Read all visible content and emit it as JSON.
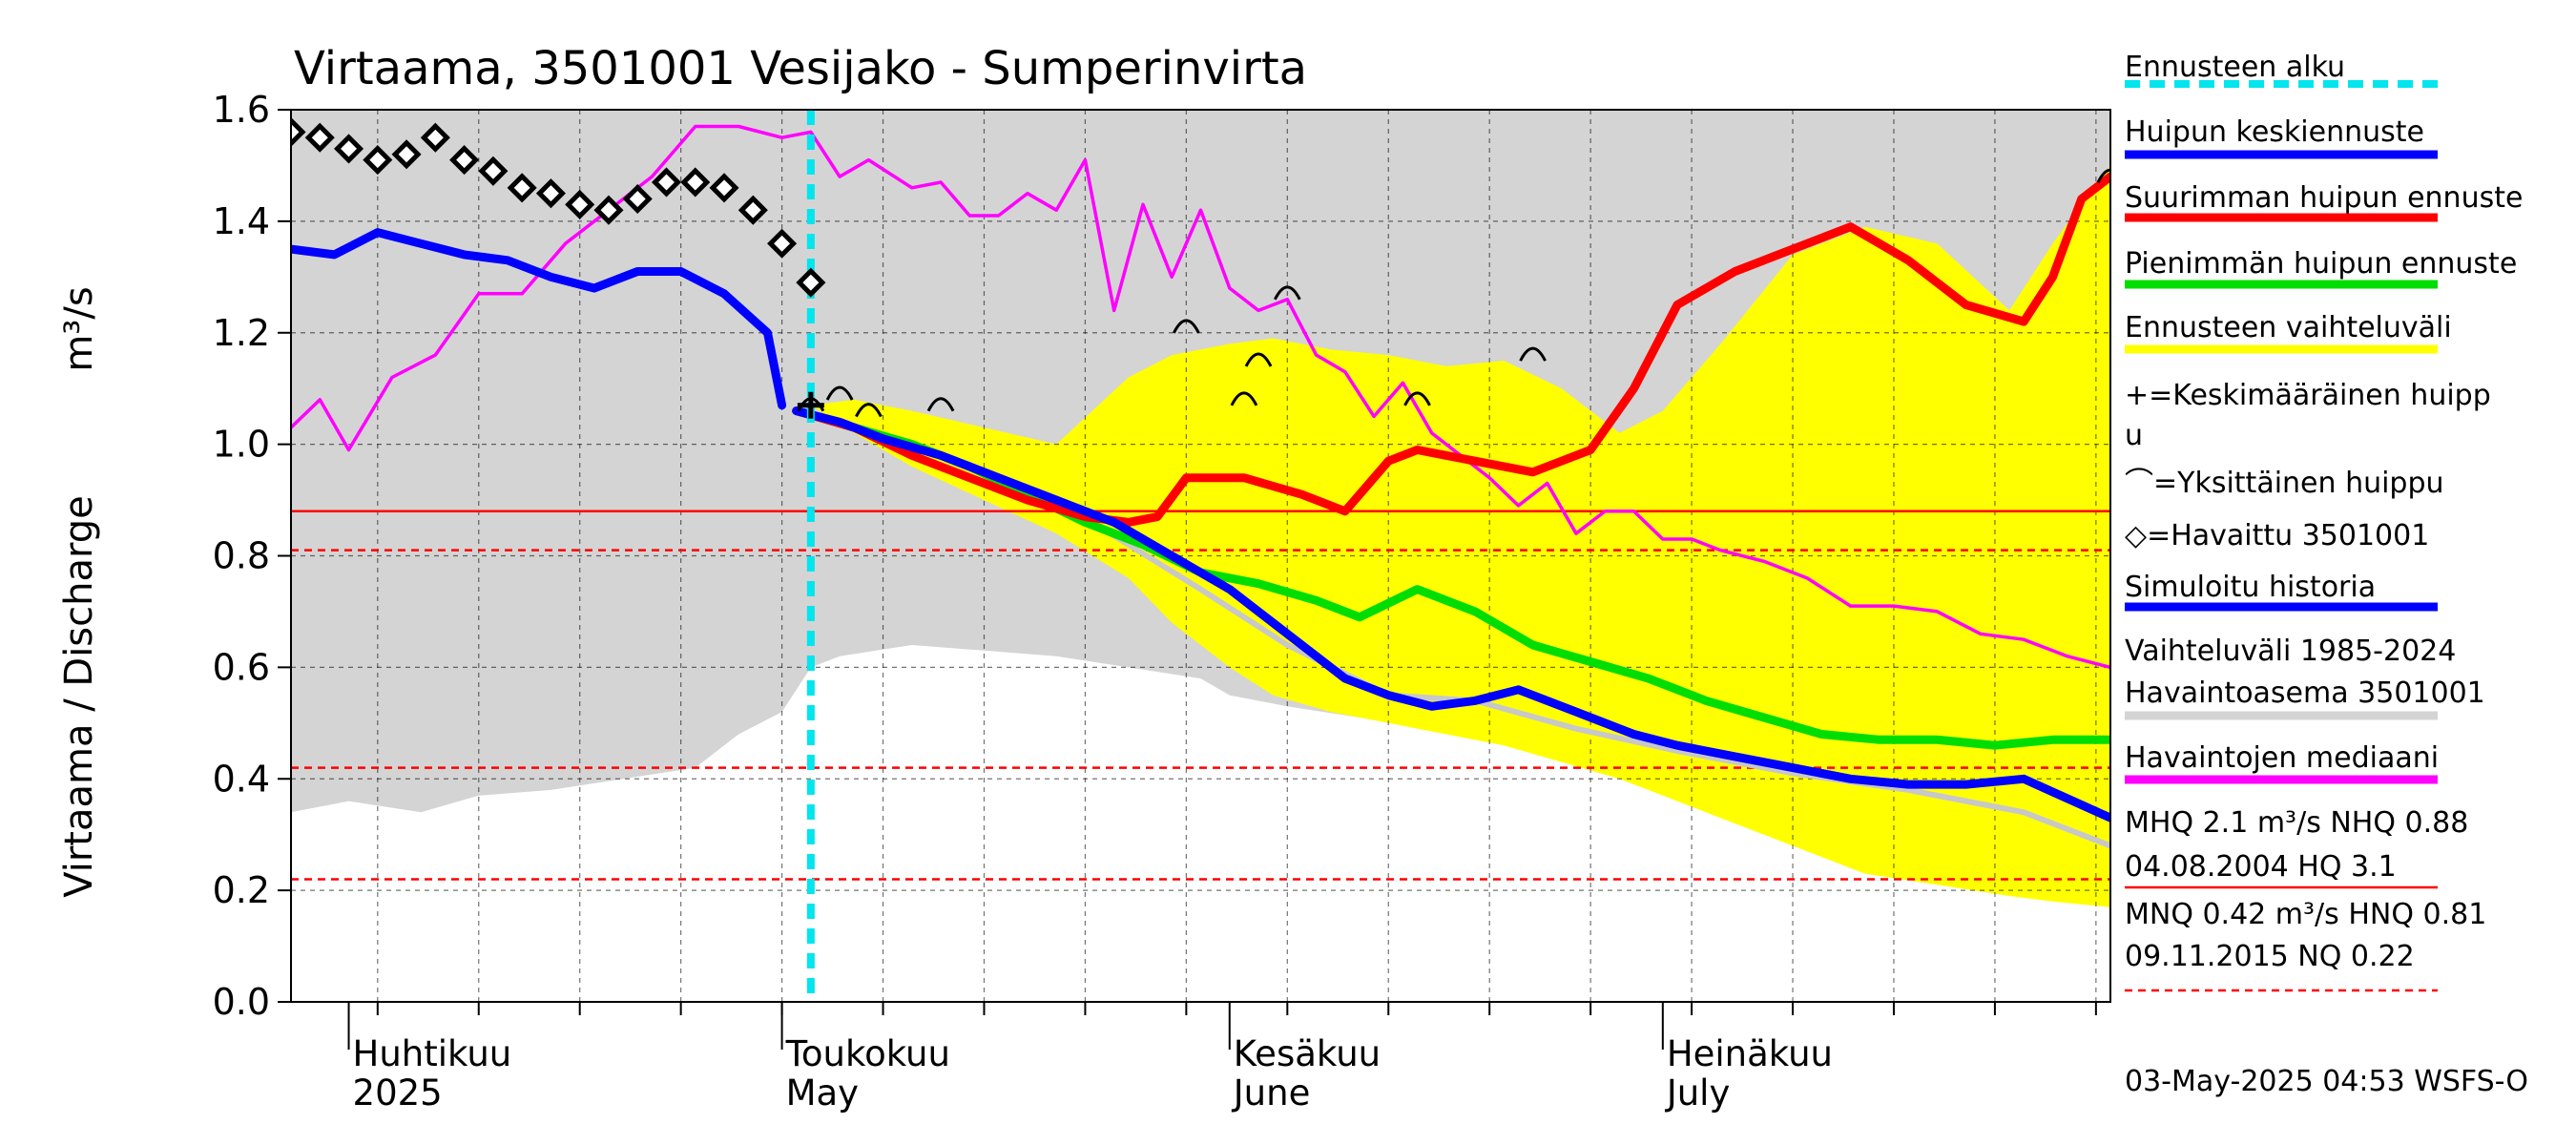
{
  "chart_data": {
    "type": "line",
    "title": "Virtaama, 3501001 Vesijako - Sumperinvirta",
    "ylabel": "Virtaama / Discharge",
    "yunit": "m³/s",
    "ylim": [
      0,
      1.6
    ],
    "xlim": [
      "2025-03-28",
      "2025-08-01"
    ],
    "yticks": [
      "0.0",
      "0.2",
      "0.4",
      "0.6",
      "0.8",
      "1.0",
      "1.2",
      "1.4",
      "1.6"
    ],
    "months": [
      {
        "label": "Huhtikuu",
        "sublabel": "2025",
        "date": "2025-04-01"
      },
      {
        "label": "Toukokuu",
        "sublabel": "May",
        "date": "2025-05-01"
      },
      {
        "label": "Kesäkuu",
        "sublabel": "June",
        "date": "2025-06-01"
      },
      {
        "label": "Heinäkuu",
        "sublabel": "July",
        "date": "2025-07-01"
      }
    ],
    "forecast_start": "2025-05-03",
    "hlines": [
      {
        "y": 0.88,
        "style": "solid",
        "color": "#ff0000"
      },
      {
        "y": 0.81,
        "style": "dashed",
        "color": "#ff0000"
      },
      {
        "y": 0.42,
        "style": "dashed",
        "color": "#ff0000"
      },
      {
        "y": 0.22,
        "style": "dashed",
        "color": "#ff0000"
      }
    ],
    "history_band": {
      "name": "Vaihteluväli 1985-2024 Havaintoasema 3501001",
      "color": "#d4d4d4",
      "x": [
        "2025-03-28",
        "2025-04-01",
        "2025-04-06",
        "2025-04-10",
        "2025-04-15",
        "2025-04-20",
        "2025-04-25",
        "2025-04-28",
        "2025-05-01",
        "2025-05-03",
        "2025-05-05",
        "2025-05-10",
        "2025-05-15",
        "2025-05-20",
        "2025-05-25",
        "2025-05-30",
        "2025-06-01",
        "2025-06-05",
        "2025-06-10",
        "2025-06-15",
        "2025-06-20",
        "2025-06-25",
        "2025-06-30",
        "2025-07-05",
        "2025-07-10",
        "2025-07-15",
        "2025-07-20",
        "2025-07-25",
        "2025-08-01"
      ],
      "upper": [
        1.6,
        1.6,
        1.6,
        1.6,
        1.6,
        1.6,
        1.6,
        1.6,
        1.6,
        1.6,
        1.6,
        1.6,
        1.6,
        1.6,
        1.6,
        1.6,
        1.6,
        1.6,
        1.6,
        1.6,
        1.6,
        1.6,
        1.6,
        1.6,
        1.6,
        1.6,
        1.6,
        1.6,
        1.6
      ],
      "lower": [
        0.34,
        0.36,
        0.34,
        0.37,
        0.38,
        0.4,
        0.42,
        0.48,
        0.52,
        0.6,
        0.62,
        0.64,
        0.63,
        0.62,
        0.6,
        0.58,
        0.55,
        0.53,
        0.51,
        0.5,
        0.5,
        0.49,
        0.48,
        0.46,
        0.44,
        0.42,
        0.41,
        0.38,
        0.3
      ]
    },
    "forecast_band": {
      "name": "Ennusteen vaihteluväli",
      "color": "#ffff00",
      "x": [
        "2025-05-03",
        "2025-05-06",
        "2025-05-10",
        "2025-05-15",
        "2025-05-20",
        "2025-05-25",
        "2025-05-28",
        "2025-06-01",
        "2025-06-04",
        "2025-06-08",
        "2025-06-12",
        "2025-06-16",
        "2025-06-20",
        "2025-06-24",
        "2025-06-28",
        "2025-07-01",
        "2025-07-05",
        "2025-07-10",
        "2025-07-15",
        "2025-07-20",
        "2025-07-25",
        "2025-07-28",
        "2025-08-01"
      ],
      "upper": [
        1.07,
        1.08,
        1.06,
        1.03,
        1.0,
        1.12,
        1.16,
        1.18,
        1.19,
        1.17,
        1.16,
        1.14,
        1.15,
        1.1,
        1.02,
        1.06,
        1.18,
        1.34,
        1.39,
        1.36,
        1.24,
        1.36,
        1.5
      ],
      "lower": [
        1.07,
        1.02,
        0.96,
        0.9,
        0.84,
        0.76,
        0.68,
        0.6,
        0.55,
        0.52,
        0.5,
        0.48,
        0.46,
        0.43,
        0.4,
        0.37,
        0.33,
        0.28,
        0.23,
        0.21,
        0.19,
        0.18,
        0.17
      ]
    },
    "series": [
      {
        "name": "Havaintojen mediaani",
        "color": "#ff00ff",
        "x": [
          "2025-03-28",
          "2025-03-30",
          "2025-04-01",
          "2025-04-04",
          "2025-04-07",
          "2025-04-10",
          "2025-04-13",
          "2025-04-16",
          "2025-04-19",
          "2025-04-22",
          "2025-04-25",
          "2025-04-28",
          "2025-05-01",
          "2025-05-03",
          "2025-05-05",
          "2025-05-07",
          "2025-05-10",
          "2025-05-12",
          "2025-05-14",
          "2025-05-16",
          "2025-05-18",
          "2025-05-20",
          "2025-05-22",
          "2025-05-24",
          "2025-05-26",
          "2025-05-28",
          "2025-05-30",
          "2025-06-01",
          "2025-06-03",
          "2025-06-05",
          "2025-06-07",
          "2025-06-09",
          "2025-06-11",
          "2025-06-13",
          "2025-06-15",
          "2025-06-17",
          "2025-06-19",
          "2025-06-21",
          "2025-06-23",
          "2025-06-25",
          "2025-06-27",
          "2025-06-29",
          "2025-07-01",
          "2025-07-03",
          "2025-07-05",
          "2025-07-08",
          "2025-07-11",
          "2025-07-14",
          "2025-07-17",
          "2025-07-20",
          "2025-07-23",
          "2025-07-26",
          "2025-07-29",
          "2025-08-01"
        ],
        "values": [
          1.03,
          1.08,
          0.99,
          1.12,
          1.16,
          1.27,
          1.27,
          1.36,
          1.42,
          1.48,
          1.57,
          1.57,
          1.55,
          1.56,
          1.48,
          1.51,
          1.46,
          1.47,
          1.41,
          1.41,
          1.45,
          1.42,
          1.51,
          1.24,
          1.43,
          1.3,
          1.42,
          1.28,
          1.24,
          1.26,
          1.16,
          1.13,
          1.05,
          1.11,
          1.02,
          0.98,
          0.94,
          0.89,
          0.93,
          0.84,
          0.88,
          0.88,
          0.83,
          0.83,
          0.81,
          0.79,
          0.76,
          0.71,
          0.71,
          0.7,
          0.66,
          0.65,
          0.62,
          0.6
        ]
      },
      {
        "name": "Simuloitu historia",
        "color": "#0000ff",
        "x": [
          "2025-03-28",
          "2025-03-31",
          "2025-04-03",
          "2025-04-06",
          "2025-04-09",
          "2025-04-12",
          "2025-04-15",
          "2025-04-18",
          "2025-04-21",
          "2025-04-24",
          "2025-04-27",
          "2025-04-30",
          "2025-05-01"
        ],
        "values": [
          1.35,
          1.34,
          1.38,
          1.36,
          1.34,
          1.33,
          1.3,
          1.28,
          1.31,
          1.31,
          1.27,
          1.2,
          1.07
        ]
      },
      {
        "name": "Huipun keskiennuste",
        "color": "#0000ff",
        "x": [
          "2025-05-02",
          "2025-05-05",
          "2025-05-08",
          "2025-05-12",
          "2025-05-16",
          "2025-05-20",
          "2025-05-24",
          "2025-05-28",
          "2025-06-01",
          "2025-06-05",
          "2025-06-09",
          "2025-06-12",
          "2025-06-15",
          "2025-06-18",
          "2025-06-21",
          "2025-06-25",
          "2025-06-29",
          "2025-07-02",
          "2025-07-06",
          "2025-07-10",
          "2025-07-14",
          "2025-07-18",
          "2025-07-22",
          "2025-07-26",
          "2025-08-01"
        ],
        "values": [
          1.06,
          1.04,
          1.01,
          0.98,
          0.94,
          0.9,
          0.86,
          0.8,
          0.74,
          0.66,
          0.58,
          0.55,
          0.53,
          0.54,
          0.56,
          0.52,
          0.48,
          0.46,
          0.44,
          0.42,
          0.4,
          0.39,
          0.39,
          0.4,
          0.33
        ]
      },
      {
        "name": "Suurimman huipun ennuste",
        "color": "#ff0000",
        "x": [
          "2025-05-02",
          "2025-05-06",
          "2025-05-10",
          "2025-05-14",
          "2025-05-18",
          "2025-05-22",
          "2025-05-25",
          "2025-05-27",
          "2025-05-29",
          "2025-06-02",
          "2025-06-06",
          "2025-06-09",
          "2025-06-12",
          "2025-06-14",
          "2025-06-18",
          "2025-06-22",
          "2025-06-26",
          "2025-06-29",
          "2025-07-02",
          "2025-07-06",
          "2025-07-10",
          "2025-07-14",
          "2025-07-18",
          "2025-07-22",
          "2025-07-26",
          "2025-07-28",
          "2025-07-30",
          "2025-08-01"
        ],
        "values": [
          1.06,
          1.03,
          0.98,
          0.94,
          0.9,
          0.87,
          0.86,
          0.87,
          0.94,
          0.94,
          0.91,
          0.88,
          0.97,
          0.99,
          0.97,
          0.95,
          0.99,
          1.1,
          1.25,
          1.31,
          1.35,
          1.39,
          1.33,
          1.25,
          1.22,
          1.3,
          1.44,
          1.48
        ]
      },
      {
        "name": "Pienimmän huipun ennuste",
        "color": "#00dd00",
        "x": [
          "2025-05-02",
          "2025-05-06",
          "2025-05-10",
          "2025-05-14",
          "2025-05-18",
          "2025-05-22",
          "2025-05-26",
          "2025-05-30",
          "2025-06-03",
          "2025-06-07",
          "2025-06-10",
          "2025-06-14",
          "2025-06-18",
          "2025-06-22",
          "2025-06-26",
          "2025-06-30",
          "2025-07-04",
          "2025-07-08",
          "2025-07-12",
          "2025-07-16",
          "2025-07-20",
          "2025-07-24",
          "2025-07-28",
          "2025-08-01"
        ],
        "values": [
          1.06,
          1.03,
          1.0,
          0.96,
          0.91,
          0.86,
          0.82,
          0.77,
          0.75,
          0.72,
          0.69,
          0.74,
          0.7,
          0.64,
          0.61,
          0.58,
          0.54,
          0.51,
          0.48,
          0.47,
          0.47,
          0.46,
          0.47,
          0.47
        ]
      },
      {
        "name": "Simulated gray continuation",
        "color": "#c8c8c8",
        "x": [
          "2025-05-02",
          "2025-05-10",
          "2025-05-20",
          "2025-05-30",
          "2025-06-05",
          "2025-06-12",
          "2025-06-18",
          "2025-06-25",
          "2025-07-02",
          "2025-07-10",
          "2025-07-18",
          "2025-07-26",
          "2025-08-01"
        ],
        "values": [
          1.06,
          1.0,
          0.9,
          0.74,
          0.64,
          0.55,
          0.54,
          0.49,
          0.45,
          0.41,
          0.38,
          0.34,
          0.28
        ]
      }
    ],
    "observed": {
      "name": "Havaittu 3501001",
      "x": [
        "2025-03-28",
        "2025-03-30",
        "2025-04-01",
        "2025-04-03",
        "2025-04-05",
        "2025-04-07",
        "2025-04-09",
        "2025-04-11",
        "2025-04-13",
        "2025-04-15",
        "2025-04-17",
        "2025-04-19",
        "2025-04-21",
        "2025-04-23",
        "2025-04-25",
        "2025-04-27",
        "2025-04-29",
        "2025-05-01",
        "2025-05-03"
      ],
      "values": [
        1.56,
        1.55,
        1.53,
        1.51,
        1.52,
        1.55,
        1.51,
        1.49,
        1.46,
        1.45,
        1.43,
        1.42,
        1.44,
        1.47,
        1.47,
        1.46,
        1.42,
        1.36,
        1.29
      ]
    },
    "mean_peak": {
      "name": "Keskimääräinen huippu",
      "x": "2025-05-03",
      "y": 1.07
    },
    "single_peaks": {
      "name": "Yksittäinen huippu",
      "points": [
        {
          "x": "2025-05-03",
          "y": 1.07
        },
        {
          "x": "2025-05-05",
          "y": 1.09
        },
        {
          "x": "2025-05-07",
          "y": 1.06
        },
        {
          "x": "2025-05-12",
          "y": 1.07
        },
        {
          "x": "2025-05-29",
          "y": 1.21
        },
        {
          "x": "2025-06-02",
          "y": 1.08
        },
        {
          "x": "2025-06-03",
          "y": 1.15
        },
        {
          "x": "2025-06-05",
          "y": 1.27
        },
        {
          "x": "2025-06-14",
          "y": 1.08
        },
        {
          "x": "2025-06-22",
          "y": 1.16
        },
        {
          "x": "2025-08-01",
          "y": 1.48
        }
      ]
    },
    "legend": [
      {
        "label": "Ennusteen alku",
        "kind": "dashline",
        "color": "#00e5ee"
      },
      {
        "label": "Huipun keskiennuste",
        "kind": "line",
        "color": "#0000ff"
      },
      {
        "label": "Suurimman huipun ennuste",
        "kind": "line",
        "color": "#ff0000"
      },
      {
        "label": "Pienimmän huipun ennuste",
        "kind": "line",
        "color": "#00dd00"
      },
      {
        "label": "Ennusteen vaihteluväli",
        "kind": "line",
        "color": "#ffff00"
      },
      {
        "label": "+=Keskimääräinen huipp",
        "label2": "u",
        "kind": "none"
      },
      {
        "label": "⌒=Yksittäinen huippu",
        "kind": "none"
      },
      {
        "label": "◇=Havaittu 3501001",
        "kind": "none"
      },
      {
        "label": "Simuloitu historia",
        "kind": "line",
        "color": "#0000ff"
      },
      {
        "label": "Vaihteluväli 1985-2024",
        "label2": " Havaintoasema 3501001",
        "kind": "line",
        "color": "#d4d4d4"
      },
      {
        "label": "Havaintojen mediaani",
        "kind": "line",
        "color": "#ff00ff"
      },
      {
        "label": "MHQ  2.1 m³/s NHQ 0.88",
        "label2": "04.08.2004 HQ  3.1",
        "kind": "thinline",
        "color": "#ff0000"
      },
      {
        "label": "MNQ 0.42 m³/s HNQ 0.81",
        "label2": "09.11.2015 NQ 0.22",
        "kind": "dashthin",
        "color": "#ff0000"
      }
    ],
    "timestamp": "03-May-2025 04:53 WSFS-O"
  }
}
